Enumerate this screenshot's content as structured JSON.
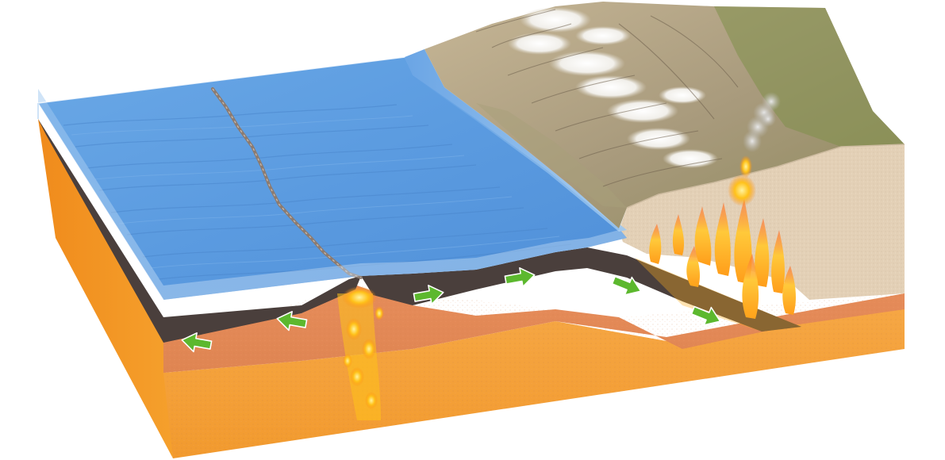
{
  "diagram": {
    "subject": "plate-tectonics-block",
    "features": [
      {
        "name": "ocean-water",
        "color": "#5b9be0"
      },
      {
        "name": "mid-ocean-ridge",
        "color": "#8c7b70"
      },
      {
        "name": "oceanic-lithosphere",
        "color": "#4a3f3c"
      },
      {
        "name": "upper-mantle",
        "color": "#e08e56"
      },
      {
        "name": "asthenosphere",
        "color": "#f7a33a"
      },
      {
        "name": "continental-crust",
        "color": "#e3d0b6"
      },
      {
        "name": "mountain-range",
        "color": "#ab9d7d"
      },
      {
        "name": "volcano-plume",
        "color": "#c9c9c9"
      },
      {
        "name": "magma",
        "color": "#ffc21a"
      }
    ],
    "arrows": [
      {
        "name": "arrow-divergent-left-outer",
        "direction": "left"
      },
      {
        "name": "arrow-divergent-left-inner",
        "direction": "left"
      },
      {
        "name": "arrow-spreading-right-1",
        "direction": "right"
      },
      {
        "name": "arrow-spreading-right-2",
        "direction": "right"
      },
      {
        "name": "arrow-subduction-1",
        "direction": "down-right"
      },
      {
        "name": "arrow-subduction-2",
        "direction": "down-right"
      }
    ],
    "arrow_color": "#5cb82e"
  }
}
